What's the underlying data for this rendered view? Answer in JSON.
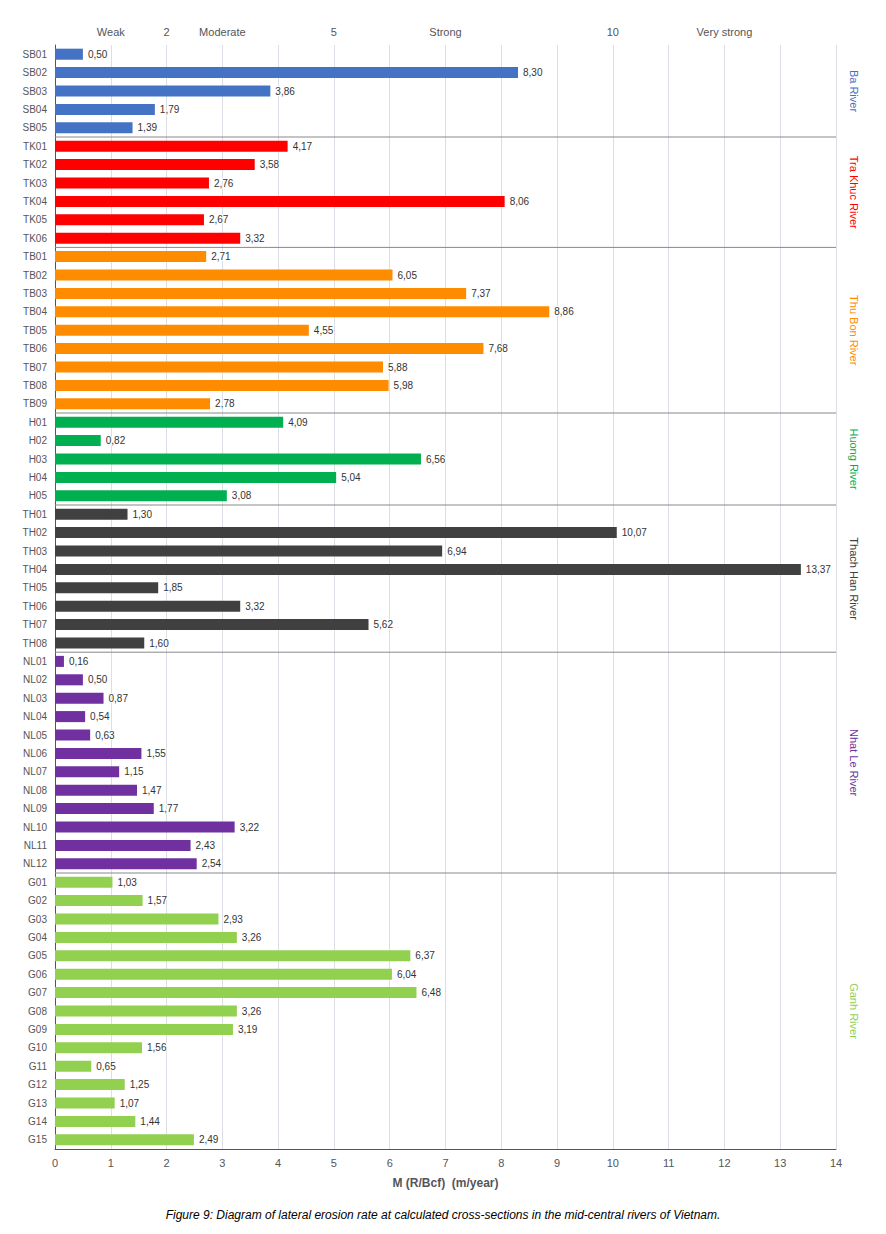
{
  "chart_data": {
    "type": "bar",
    "orientation": "horizontal",
    "categories": [
      "SB01",
      "SB02",
      "SB03",
      "SB04",
      "SB05",
      "TK01",
      "TK02",
      "TK03",
      "TK04",
      "TK05",
      "TK06",
      "TB01",
      "TB02",
      "TB03",
      "TB04",
      "TB05",
      "TB06",
      "TB07",
      "TB08",
      "TB09",
      "H01",
      "H02",
      "H03",
      "H04",
      "H05",
      "TH01",
      "TH02",
      "TH03",
      "TH04",
      "TH05",
      "TH06",
      "TH07",
      "TH08",
      "NL01",
      "NL02",
      "NL03",
      "NL04",
      "NL05",
      "NL06",
      "NL07",
      "NL08",
      "NL09",
      "NL10",
      "NL11",
      "NL12",
      "G01",
      "G02",
      "G03",
      "G04",
      "G05",
      "G06",
      "G07",
      "G08",
      "G09",
      "G10",
      "G11",
      "G12",
      "G13",
      "G14",
      "G15"
    ],
    "values": [
      0.5,
      8.3,
      3.86,
      1.79,
      1.39,
      4.17,
      3.58,
      2.76,
      8.06,
      2.67,
      3.32,
      2.71,
      6.05,
      7.37,
      8.86,
      4.55,
      7.68,
      5.88,
      5.98,
      2.78,
      4.09,
      0.82,
      6.56,
      5.04,
      3.08,
      1.3,
      10.07,
      6.94,
      13.37,
      1.85,
      3.32,
      5.62,
      1.6,
      0.16,
      0.5,
      0.87,
      0.54,
      0.63,
      1.55,
      1.15,
      1.47,
      1.77,
      3.22,
      2.43,
      2.54,
      1.03,
      1.57,
      2.93,
      3.26,
      6.37,
      6.04,
      6.48,
      3.26,
      3.19,
      1.56,
      0.65,
      1.25,
      1.07,
      1.44,
      2.49
    ],
    "value_labels": [
      "0,50",
      "8,30",
      "3,86",
      "1,79",
      "1,39",
      "4,17",
      "3,58",
      "2,76",
      "8,06",
      "2,67",
      "3,32",
      "2,71",
      "6,05",
      "7,37",
      "8,86",
      "4,55",
      "7,68",
      "5,88",
      "5,98",
      "2,78",
      "4,09",
      "0,82",
      "6,56",
      "5,04",
      "3,08",
      "1,30",
      "10,07",
      "6,94",
      "13,37",
      "1,85",
      "3,32",
      "5,62",
      "1,60",
      "0,16",
      "0,50",
      "0,87",
      "0,54",
      "0,63",
      "1,55",
      "1,15",
      "1,47",
      "1,77",
      "3,22",
      "2,43",
      "2,54",
      "1,03",
      "1,57",
      "2,93",
      "3,26",
      "6,37",
      "6,04",
      "6,48",
      "3,26",
      "3,19",
      "1,56",
      "0,65",
      "1,25",
      "1,07",
      "1,44",
      "2,49"
    ],
    "colors": [
      "#4472C4",
      "#4472C4",
      "#4472C4",
      "#4472C4",
      "#4472C4",
      "#FF0000",
      "#FF0000",
      "#FF0000",
      "#FF0000",
      "#FF0000",
      "#FF0000",
      "#FF8C00",
      "#FF8C00",
      "#FF8C00",
      "#FF8C00",
      "#FF8C00",
      "#FF8C00",
      "#FF8C00",
      "#FF8C00",
      "#FF8C00",
      "#00B050",
      "#00B050",
      "#00B050",
      "#00B050",
      "#00B050",
      "#404040",
      "#404040",
      "#404040",
      "#404040",
      "#404040",
      "#404040",
      "#404040",
      "#404040",
      "#7030A0",
      "#7030A0",
      "#7030A0",
      "#7030A0",
      "#7030A0",
      "#7030A0",
      "#7030A0",
      "#7030A0",
      "#7030A0",
      "#7030A0",
      "#7030A0",
      "#7030A0",
      "#92D050",
      "#92D050",
      "#92D050",
      "#92D050",
      "#92D050",
      "#92D050",
      "#92D050",
      "#92D050",
      "#92D050",
      "#92D050",
      "#92D050",
      "#92D050",
      "#92D050",
      "#92D050",
      "#92D050"
    ],
    "groups": [
      "Ba River",
      "Ba River",
      "Ba River",
      "Ba River",
      "Ba River",
      "Tra Khuc River",
      "Tra Khuc River",
      "Tra Khuc River",
      "Tra Khuc River",
      "Tra Khuc River",
      "Tra Khuc River",
      "Thu Bon River",
      "Thu Bon River",
      "Thu Bon River",
      "Thu Bon River",
      "Thu Bon River",
      "Thu Bon River",
      "Thu Bon River",
      "Thu Bon River",
      "Thu Bon River",
      "Huong River",
      "Huong River",
      "Huong River",
      "Huong River",
      "Huong River",
      "Thach Han River",
      "Thach Han River",
      "Thach Han River",
      "Thach Han River",
      "Thach Han River",
      "Thach Han River",
      "Thach Han River",
      "Thach Han River",
      "Nhat Le River",
      "Nhat Le River",
      "Nhat Le River",
      "Nhat Le River",
      "Nhat Le River",
      "Nhat Le River",
      "Nhat Le River",
      "Nhat Le River",
      "Nhat Le River",
      "Nhat Le River",
      "Nhat Le River",
      "Nhat Le River",
      "Ganh River",
      "Ganh River",
      "Ganh River",
      "Ganh River",
      "Ganh River",
      "Ganh River",
      "Ganh River",
      "Ganh River",
      "Ganh River",
      "Ganh River",
      "Ganh River",
      "Ganh River",
      "Ganh River",
      "Ganh River",
      "Ganh River"
    ],
    "group_labels": [
      {
        "name": "Ba River",
        "color": "#4472C4"
      },
      {
        "name": "Tra Khuc River",
        "color": "#FF0000"
      },
      {
        "name": "Thu Bon River",
        "color": "#FF8C00"
      },
      {
        "name": "Huong River",
        "color": "#00B050"
      },
      {
        "name": "Thach Han River",
        "color": "#404040"
      },
      {
        "name": "Nhat Le River",
        "color": "#7030A0"
      },
      {
        "name": "Ganh River",
        "color": "#92D050"
      }
    ],
    "top_labels": [
      {
        "text": "Weak",
        "x": 1
      },
      {
        "text": "2",
        "x": 2
      },
      {
        "text": "Moderate",
        "x": 3
      },
      {
        "text": "5",
        "x": 5
      },
      {
        "text": "Strong",
        "x": 7
      },
      {
        "text": "10",
        "x": 10
      },
      {
        "text": "Very strong",
        "x": 12
      }
    ],
    "xlabel": "M (R/Bcf)  (m/year)",
    "caption": "Figure 9: Diagram of lateral erosion rate at calculated cross-sections in the mid-central rivers of Vietnam.",
    "xlim": [
      0,
      14
    ],
    "xticks": [
      0,
      1,
      2,
      3,
      4,
      5,
      6,
      7,
      8,
      9,
      10,
      11,
      12,
      13,
      14
    ],
    "data_labels": true,
    "grid": true
  }
}
